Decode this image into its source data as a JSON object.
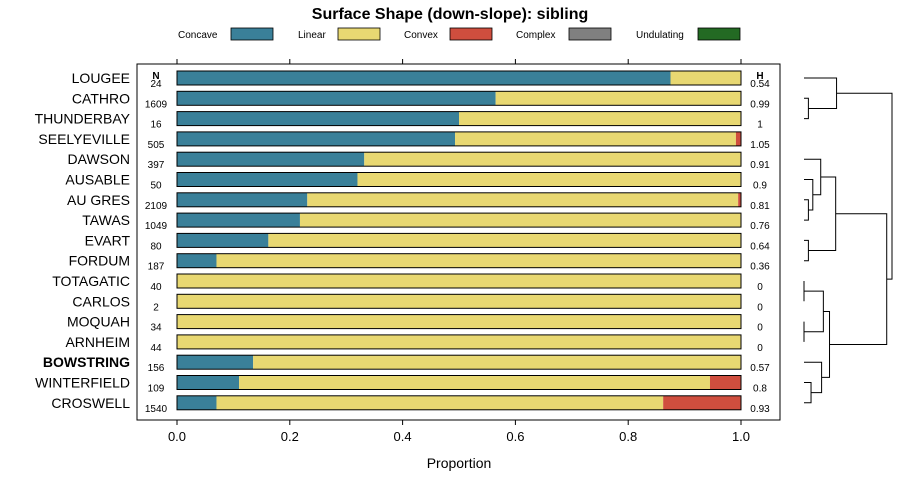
{
  "chart_data": {
    "type": "bar",
    "orientation": "horizontal",
    "stacked": true,
    "title": "Surface Shape (down-slope): sibling",
    "xlabel": "Proportion",
    "ylabel": "",
    "xlim": [
      0,
      1
    ],
    "xticks": [
      0.0,
      0.2,
      0.4,
      0.6,
      0.8,
      1.0
    ],
    "xtick_labels": [
      "0.0",
      "0.2",
      "0.4",
      "0.6",
      "0.8",
      "1.0"
    ],
    "n_header": "N",
    "h_header": "H",
    "highlighted_category": "BOWSTRING",
    "legend_position": "top",
    "series": [
      {
        "name": "Concave",
        "color": "#3a8099"
      },
      {
        "name": "Linear",
        "color": "#e8d872"
      },
      {
        "name": "Convex",
        "color": "#cf4e3e"
      },
      {
        "name": "Complex",
        "color": "#808080"
      },
      {
        "name": "Undulating",
        "color": "#236a23"
      }
    ],
    "categories": [
      "LOUGEE",
      "CATHRO",
      "THUNDERBAY",
      "SEELYEVILLE",
      "DAWSON",
      "AUSABLE",
      "AU GRES",
      "TAWAS",
      "EVART",
      "FORDUM",
      "TOTAGATIC",
      "CARLOS",
      "MOQUAH",
      "ARNHEIM",
      "BOWSTRING",
      "WINTERFIELD",
      "CROSWELL"
    ],
    "n": [
      "24",
      "1609",
      "16",
      "505",
      "397",
      "50",
      "2109",
      "1049",
      "80",
      "187",
      "40",
      "2",
      "34",
      "44",
      "156",
      "109",
      "1540"
    ],
    "h": [
      "0.54",
      "0.99",
      "1",
      "1.05",
      "0.91",
      "0.9",
      "0.81",
      "0.76",
      "0.64",
      "0.36",
      "0",
      "0",
      "0",
      "0",
      "0.57",
      "0.8",
      "0.93"
    ],
    "values": [
      [
        0.875,
        0.125,
        0,
        0,
        0
      ],
      [
        0.565,
        0.435,
        0,
        0,
        0
      ],
      [
        0.5,
        0.5,
        0,
        0,
        0
      ],
      [
        0.493,
        0.498,
        0.009,
        0,
        0
      ],
      [
        0.332,
        0.668,
        0,
        0,
        0
      ],
      [
        0.32,
        0.68,
        0,
        0,
        0
      ],
      [
        0.231,
        0.764,
        0.005,
        0,
        0
      ],
      [
        0.218,
        0.782,
        0,
        0,
        0
      ],
      [
        0.162,
        0.838,
        0,
        0,
        0
      ],
      [
        0.07,
        0.93,
        0,
        0,
        0
      ],
      [
        0,
        1,
        0,
        0,
        0
      ],
      [
        0,
        1,
        0,
        0,
        0
      ],
      [
        0,
        1,
        0,
        0,
        0
      ],
      [
        0,
        1,
        0,
        0,
        0
      ],
      [
        0.135,
        0.865,
        0,
        0,
        0
      ],
      [
        0.11,
        0.835,
        0.055,
        0,
        0
      ],
      [
        0.07,
        0.792,
        0.138,
        0,
        0
      ]
    ],
    "dendrogram": {
      "leaf_order": [
        "LOUGEE",
        "CATHRO",
        "THUNDERBAY",
        "SEELYEVILLE",
        "DAWSON",
        "AUSABLE",
        "AU GRES",
        "TAWAS",
        "EVART",
        "FORDUM",
        "TOTAGATIC",
        "CARLOS",
        "MOQUAH",
        "ARNHEIM",
        "BOWSTRING",
        "WINTERFIELD",
        "CROSWELL"
      ],
      "merges": [
        {
          "a": "CATHRO",
          "b": "THUNDERBAY",
          "height": 0.05
        },
        {
          "a": "AU GRES",
          "b": "TAWAS",
          "height": 0.05
        },
        {
          "a": "TOTAGATIC",
          "b": "CARLOS",
          "height": 0
        },
        {
          "a": "MOQUAH",
          "b": "ARNHEIM",
          "height": 0
        },
        {
          "a": "WINTERFIELD",
          "b": "CROSWELL",
          "height": 0.08
        },
        {
          "a": "LOUGEE",
          "b": "CATHRO",
          "height": 0.37
        },
        {
          "a": "AUSABLE",
          "b": "AU GRES",
          "height": 0.1
        },
        {
          "a": "BOWSTRING",
          "b": "WINTERFIELD",
          "height": 0.2
        },
        {
          "a": "EVART",
          "b": "FORDUM",
          "height": 0.05
        },
        {
          "a": "DAWSON",
          "b": "AUSABLE",
          "height": 0.19
        },
        {
          "a": "TOTAGATIC",
          "b": "MOQUAH",
          "height": 0.22
        },
        {
          "a": "TOTAGATIC",
          "b": "BOWSTRING",
          "height": 0.29
        },
        {
          "a": "DAWSON",
          "b": "EVART",
          "height": 0.36
        },
        {
          "a": "DAWSON",
          "b": "TOTAGATIC",
          "height": 0.94
        },
        {
          "a": "LOUGEE",
          "b": "DAWSON",
          "height": 1.0
        }
      ]
    }
  }
}
